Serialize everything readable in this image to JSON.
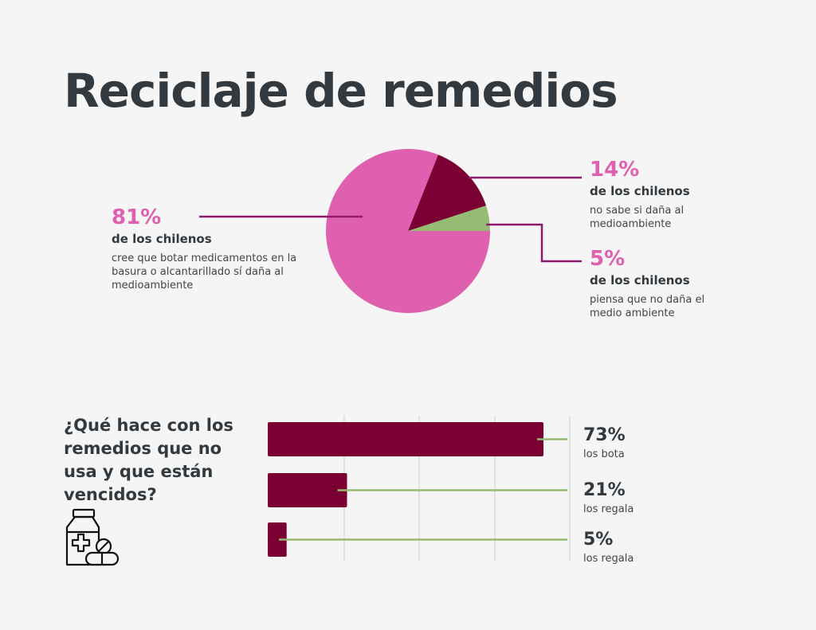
{
  "title": "Reciclaje de remedios",
  "colors": {
    "pink": "#e060b0",
    "maroon": "#7a0033",
    "green": "#96bb72",
    "purple": "#8e1a6e",
    "dark": "#333a3f",
    "grid": "#cfcfcf"
  },
  "chart_data": [
    {
      "type": "pie",
      "slices": [
        {
          "value": 81,
          "color": "#e060b0",
          "pct_label": "81%",
          "subtitle": "de los chilenos",
          "description": "cree que botar medicamentos en la basura o alcantarillado sí daña al medioambiente"
        },
        {
          "value": 14,
          "color": "#7a0033",
          "pct_label": "14%",
          "subtitle": "de los chilenos",
          "description": "no sabe si daña al medioambiente"
        },
        {
          "value": 5,
          "color": "#96bb72",
          "pct_label": "5%",
          "subtitle": "de los chilenos",
          "description": "piensa que no daña el medio ambiente"
        }
      ]
    },
    {
      "type": "bar",
      "orientation": "horizontal",
      "title": "¿Qué hace con los remedios que no usa y que están vencidos?",
      "xlim": [
        0,
        100
      ],
      "gridlines": [
        25,
        50,
        75
      ],
      "bars": [
        {
          "value": 73,
          "pct_label": "73%",
          "label": "los bota"
        },
        {
          "value": 21,
          "pct_label": "21%",
          "label": "los regala"
        },
        {
          "value": 5,
          "pct_label": "5%",
          "label": "los regala"
        }
      ]
    }
  ],
  "icon": "medicine-bottle-pills-icon"
}
